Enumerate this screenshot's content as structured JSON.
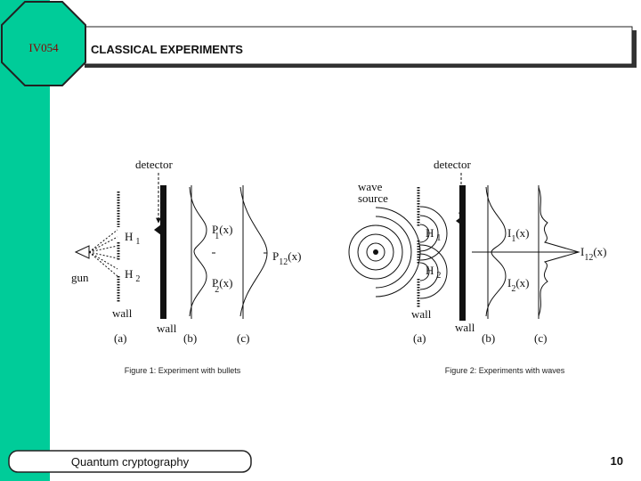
{
  "header": {
    "course": "IV054",
    "title": "CLASSICAL EXPERIMENTS"
  },
  "figure1": {
    "detector": "detector",
    "hole1": {
      "text": "H",
      "sub": "1"
    },
    "hole2": {
      "text": "H",
      "sub": "2"
    },
    "gun": "gun",
    "wall_a": "wall",
    "wall_b": "wall",
    "p1": {
      "text": "P",
      "sub": "1",
      "suffix": "(x)"
    },
    "p2": {
      "text": "P",
      "sub": "2",
      "suffix": "(x)"
    },
    "p12": {
      "text": "P",
      "sub": "12",
      "suffix": "(x)"
    },
    "panels": [
      "(a)",
      "(b)",
      "(c)"
    ],
    "caption": "Figure 1: Experiment with bullets"
  },
  "figure2": {
    "source": [
      "wave",
      "source"
    ],
    "detector": "detector",
    "hole1": {
      "text": "H",
      "sub": "1"
    },
    "hole2": {
      "text": "H",
      "sub": "2"
    },
    "wall_a": "wall",
    "wall_b": "wall",
    "i1": {
      "text": "I",
      "sub": "1",
      "suffix": "(x)"
    },
    "i2": {
      "text": "I",
      "sub": "2",
      "suffix": "(x)"
    },
    "i12": {
      "text": "I",
      "sub": "12",
      "suffix": "(x)"
    },
    "panels": [
      "(a)",
      "(b)",
      "(c)"
    ],
    "caption": "Figure 2: Experiments with waves"
  },
  "footer": {
    "course_name": "Quantum cryptography",
    "page": "10"
  }
}
